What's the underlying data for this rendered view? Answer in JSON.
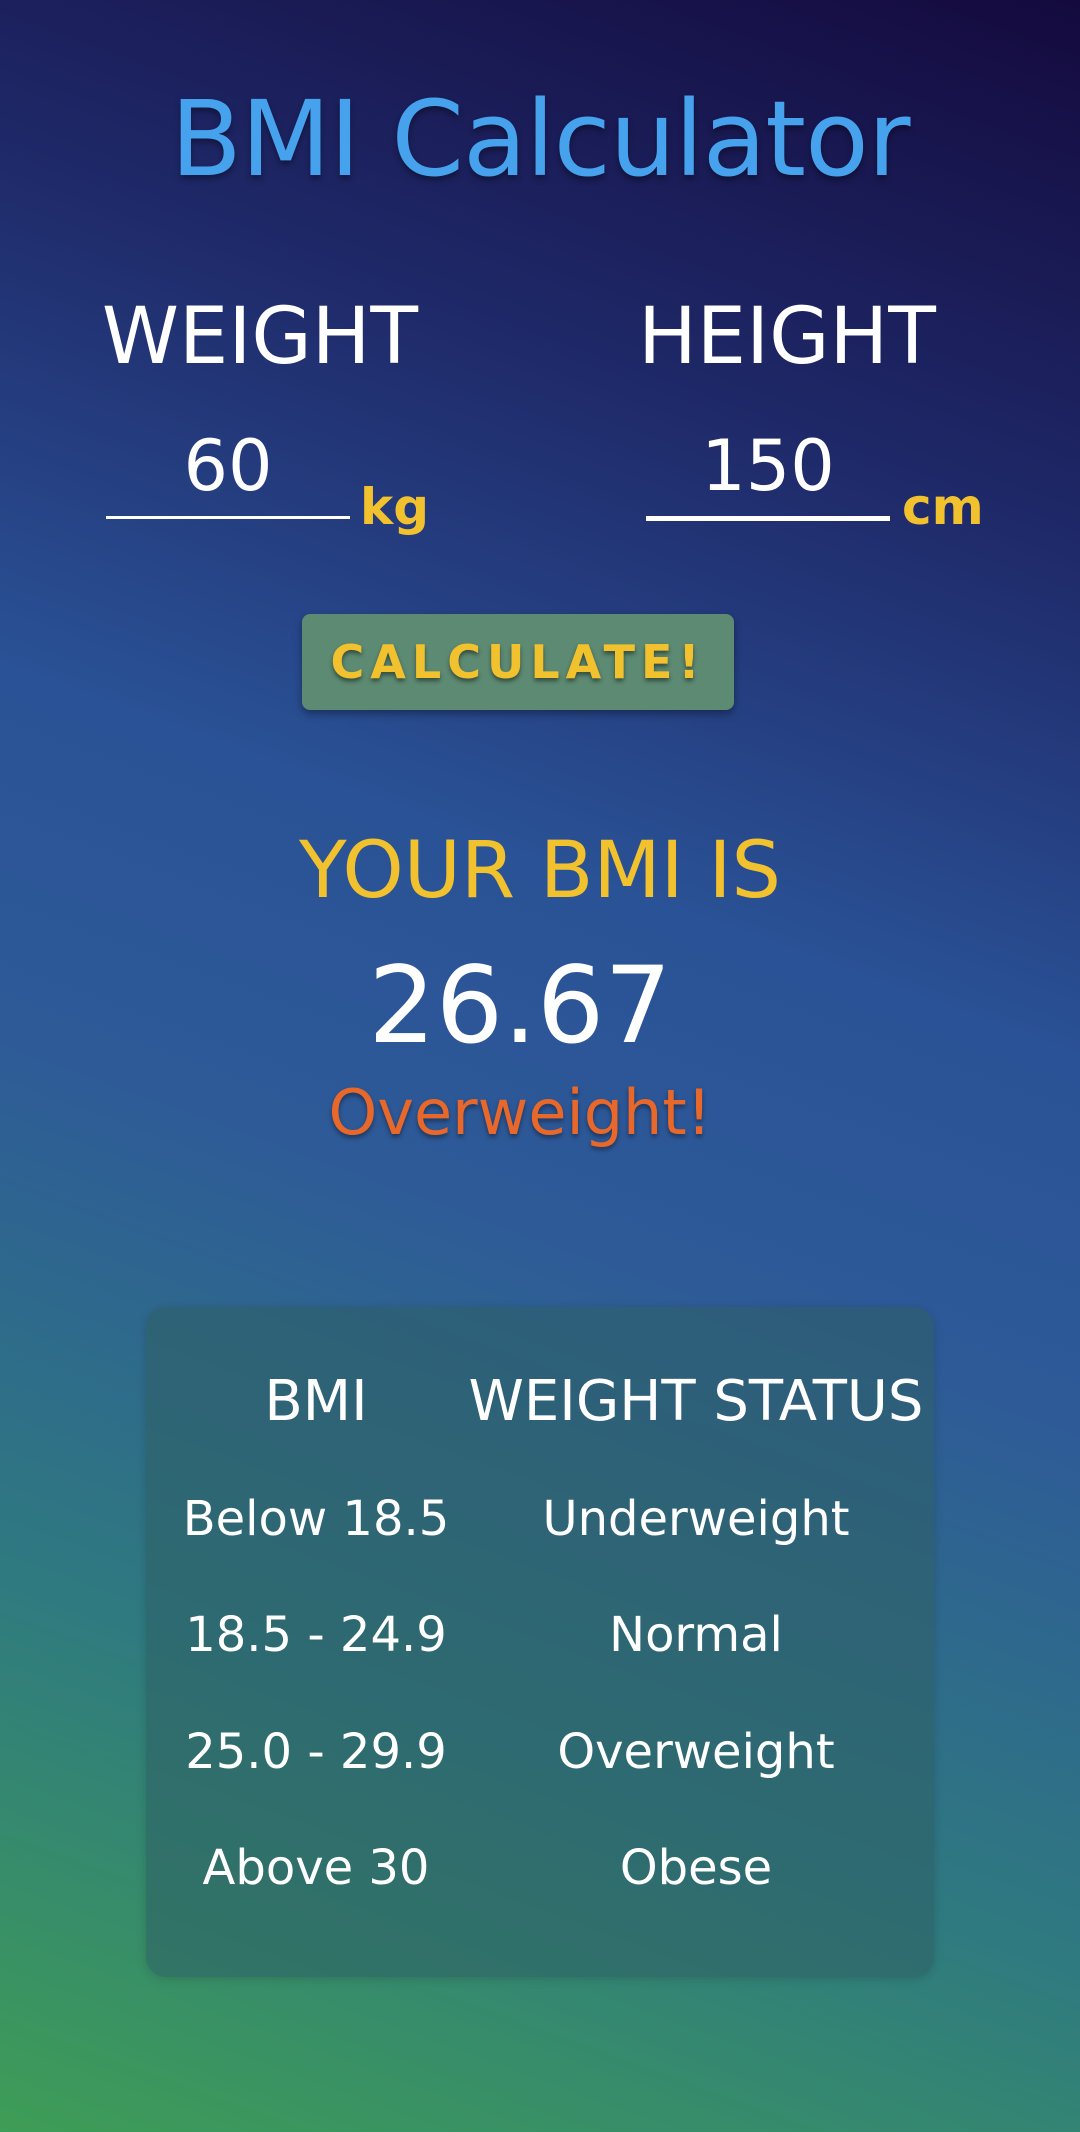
{
  "app": {
    "title": "BMI Calculator"
  },
  "weight": {
    "label": "WEIGHT",
    "value": "60",
    "unit": "kg"
  },
  "height": {
    "label": "HEIGHT",
    "value": "150",
    "unit": "cm"
  },
  "calculate_button": {
    "label": "CALCULATE!"
  },
  "result": {
    "label": "YOUR BMI IS",
    "value": "26.67",
    "status": "Overweight!"
  },
  "bmi_table": {
    "headers": {
      "bmi": "BMI",
      "status": "WEIGHT STATUS"
    },
    "rows": [
      {
        "bmi": "Below 18.5",
        "status": "Underweight"
      },
      {
        "bmi": "18.5 - 24.9",
        "status": "Normal"
      },
      {
        "bmi": "25.0 - 29.9",
        "status": "Overweight"
      },
      {
        "bmi": "Above 30",
        "status": "Obese"
      }
    ]
  },
  "colors": {
    "title": "#47a2ee",
    "accent_yellow": "#f2c12e",
    "status_orange": "#e7682a",
    "button_bg": "#5d8a72"
  }
}
